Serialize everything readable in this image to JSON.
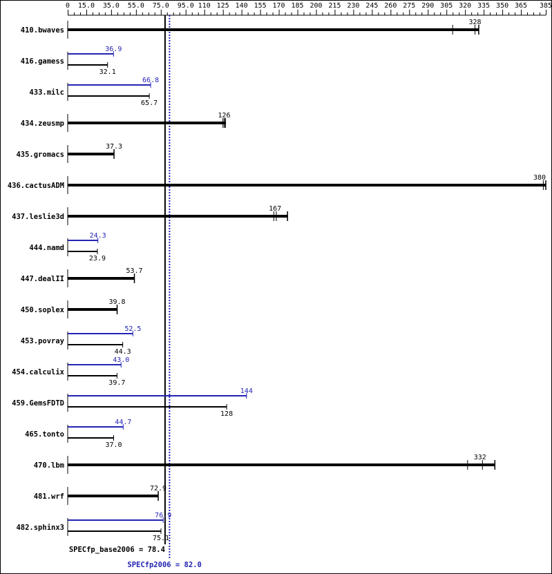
{
  "chart_data": {
    "type": "bar",
    "orientation": "horizontal",
    "xlim": [
      0,
      385
    ],
    "tick_labels": [
      "0",
      "15.0",
      "35.0",
      "55.0",
      "75.0",
      "95.0",
      "110",
      "125",
      "140",
      "155",
      "170",
      "185",
      "200",
      "215",
      "230",
      "245",
      "260",
      "275",
      "290",
      "305",
      "320",
      "335",
      "350",
      "365",
      "385"
    ],
    "tick_values": [
      0,
      15,
      35,
      55,
      75,
      95,
      110,
      125,
      140,
      155,
      170,
      185,
      200,
      215,
      230,
      245,
      260,
      275,
      290,
      305,
      320,
      335,
      350,
      365,
      385
    ],
    "minor_tick_step": 5,
    "colors": {
      "base": "#000000",
      "peak": "#2323b4"
    },
    "benchmarks": [
      {
        "name": "410.bwaves",
        "base": 328,
        "base_label": "328",
        "runs": [
          310,
          328,
          331
        ]
      },
      {
        "name": "416.gamess",
        "peak": 36.9,
        "peak_label": "36.9",
        "base": 32.1,
        "base_label": "32.1"
      },
      {
        "name": "433.milc",
        "peak": 66.8,
        "peak_label": "66.8",
        "base": 65.7,
        "base_label": "65.7"
      },
      {
        "name": "434.zeusmp",
        "base": 126,
        "base_label": "126",
        "runs": [
          125,
          126,
          127
        ]
      },
      {
        "name": "435.gromacs",
        "base": 37.3,
        "base_label": "37.3"
      },
      {
        "name": "436.cactusADM",
        "base": 380,
        "base_label": "380",
        "runs": [
          383,
          385
        ]
      },
      {
        "name": "437.leslie3d",
        "base": 167,
        "base_label": "167",
        "runs": [
          166,
          168,
          177
        ]
      },
      {
        "name": "444.namd",
        "peak": 24.3,
        "peak_label": "24.3",
        "base": 23.9,
        "base_label": "23.9"
      },
      {
        "name": "447.dealII",
        "base": 53.7,
        "base_label": "53.7"
      },
      {
        "name": "450.soplex",
        "base": 39.8,
        "base_label": "39.8"
      },
      {
        "name": "453.povray",
        "peak": 52.5,
        "peak_label": "52.5",
        "base": 44.3,
        "base_label": "44.3"
      },
      {
        "name": "454.calculix",
        "peak": 43.0,
        "peak_label": "43.0",
        "base": 39.7,
        "base_label": "39.7"
      },
      {
        "name": "459.GemsFDTD",
        "peak": 144,
        "peak_label": "144",
        "base": 128,
        "base_label": "128"
      },
      {
        "name": "465.tonto",
        "peak": 44.7,
        "peak_label": "44.7",
        "base": 37.0,
        "base_label": "37.0"
      },
      {
        "name": "470.lbm",
        "base": 332,
        "base_label": "332",
        "runs": [
          322,
          334,
          344
        ]
      },
      {
        "name": "481.wrf",
        "base": 72.9,
        "base_label": "72.9"
      },
      {
        "name": "482.sphinx3",
        "peak": 76.9,
        "peak_label": "76.9",
        "base": 75.1,
        "base_label": "75.1"
      }
    ],
    "base_mean": 78.4,
    "peak_mean": 82.0,
    "base_mean_label": "SPECfp_base2006 = 78.4",
    "peak_mean_label": "SPECfp2006 = 82.0"
  }
}
